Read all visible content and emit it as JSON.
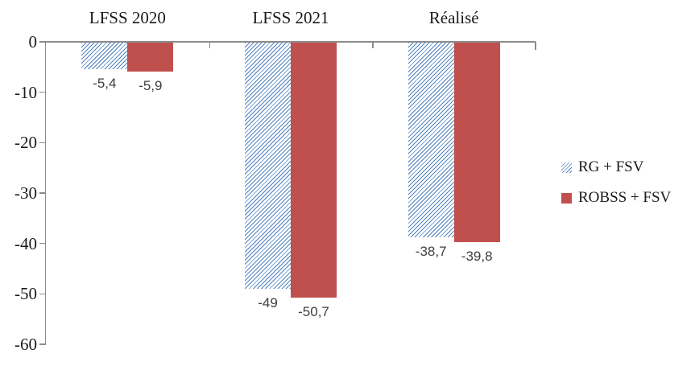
{
  "figure": {
    "background": "#ffffff",
    "axis_color": "#8C8C8C",
    "text_color": "#1a1a1a",
    "data_label_color": "#404040"
  },
  "chart_data": {
    "type": "bar",
    "title": "",
    "categories": [
      "LFSS 2020",
      "LFSS 2021",
      "Réalisé"
    ],
    "series": [
      {
        "name": "RG + FSV",
        "pattern": "hatched-diagonal",
        "color": "#4F81BD",
        "values": [
          -5.4,
          -49,
          -38.7
        ],
        "data_labels": [
          "-5,4",
          "-49",
          "-38,7"
        ]
      },
      {
        "name": "ROBSS + FSV",
        "pattern": "solid",
        "color": "#C0504D",
        "values": [
          -5.9,
          -50.7,
          -39.8
        ],
        "data_labels": [
          "-5,9",
          "-50,7",
          "-39,8"
        ]
      }
    ],
    "y_axis": {
      "min": -60,
      "max": 0,
      "tick_step": -10,
      "tick_labels": [
        "0",
        "-10",
        "-20",
        "-30",
        "-40",
        "-50",
        "-60"
      ]
    },
    "x_axis": {
      "labels_position": "top"
    },
    "legend": {
      "position": "right",
      "entries": [
        "RG + FSV",
        "ROBSS + FSV"
      ]
    },
    "grid": false
  }
}
